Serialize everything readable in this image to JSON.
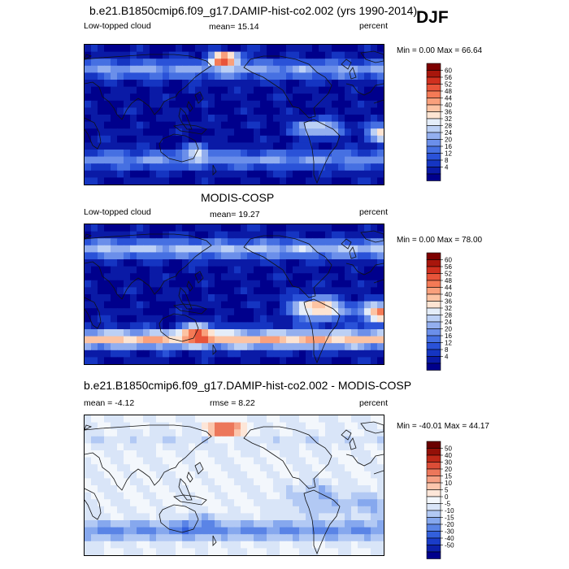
{
  "season": "DJF",
  "colors": {
    "seq_scale": [
      "#00008c",
      "#0a1aa6",
      "#1535c2",
      "#2a52d8",
      "#4670e2",
      "#6b8fea",
      "#93afef",
      "#bcd0f5",
      "#e4edf9",
      "#fde4d2",
      "#fcc3a3",
      "#f9a07c",
      "#f47a56",
      "#e8543a",
      "#d0301f",
      "#a8160c",
      "#7d0000"
    ],
    "diff_scale": [
      "#00008c",
      "#0c20aa",
      "#1a3cc8",
      "#3360dc",
      "#5a84e6",
      "#86a8ee",
      "#b2c9f4",
      "#d9e5f8",
      "#f3f7fc",
      "#fde6d8",
      "#fbc6ad",
      "#f5a084",
      "#ec775b",
      "#dc4d37",
      "#be2818",
      "#941008",
      "#6a0000"
    ]
  },
  "panels": [
    {
      "title": "b.e21.B1850cmip6.f09_g17.DAMIP-hist-co2.002 (yrs 1990-2014)",
      "left_label": "Low-topped cloud",
      "stat_label": "mean=  15.14",
      "units": "percent",
      "minmax": "Min =   0.00 Max =   66.64",
      "colorbar_ticks": [
        "60",
        "56",
        "52",
        "48",
        "44",
        "40",
        "36",
        "32",
        "28",
        "24",
        "20",
        "16",
        "12",
        "8",
        "4"
      ],
      "colorbar_scale": "seq"
    },
    {
      "title": "MODIS-COSP",
      "left_label": "Low-topped cloud",
      "stat_label": "mean=  19.27",
      "units": "percent",
      "minmax": "Min =   0.00 Max =   78.00",
      "colorbar_ticks": [
        "60",
        "56",
        "52",
        "48",
        "44",
        "40",
        "36",
        "32",
        "28",
        "24",
        "20",
        "16",
        "12",
        "8",
        "4"
      ],
      "colorbar_scale": "seq"
    },
    {
      "title": "b.e21.B1850cmip6.f09_g17.DAMIP-hist-co2.002 - MODIS-COSP",
      "left_label": "mean =  -4.12",
      "stat_label": "rmse =    8.22",
      "units": "percent",
      "minmax": "Min = -40.01 Max =   44.17",
      "colorbar_ticks": [
        "50",
        "40",
        "30",
        "20",
        "15",
        "10",
        "5",
        "0",
        "-5",
        "-10",
        "-15",
        "-20",
        "-30",
        "-40",
        "-50"
      ],
      "colorbar_scale": "diff"
    }
  ],
  "chart_data": [
    {
      "type": "heatmap",
      "title": "b.e21.B1850cmip6.f09_g17.DAMIP-hist-co2.002 (yrs 1990-2014)",
      "variable": "Low-topped cloud",
      "units": "percent",
      "season": "DJF",
      "mean": 15.14,
      "min": 0.0,
      "max": 66.64,
      "colorbar_levels": [
        4,
        8,
        12,
        16,
        20,
        24,
        28,
        32,
        36,
        40,
        44,
        48,
        52,
        56,
        60
      ],
      "map": "global lat-lon, Pacific-centered"
    },
    {
      "type": "heatmap",
      "title": "MODIS-COSP",
      "variable": "Low-topped cloud",
      "units": "percent",
      "season": "DJF",
      "mean": 19.27,
      "min": 0.0,
      "max": 78.0,
      "colorbar_levels": [
        4,
        8,
        12,
        16,
        20,
        24,
        28,
        32,
        36,
        40,
        44,
        48,
        52,
        56,
        60
      ],
      "map": "global lat-lon, Pacific-centered"
    },
    {
      "type": "heatmap",
      "title": "b.e21.B1850cmip6.f09_g17.DAMIP-hist-co2.002 - MODIS-COSP",
      "units": "percent",
      "season": "DJF",
      "mean": -4.12,
      "rmse": 8.22,
      "min": -40.01,
      "max": 44.17,
      "colorbar_levels": [
        -50,
        -40,
        -30,
        -20,
        -15,
        -10,
        -5,
        0,
        5,
        10,
        15,
        20,
        30,
        40,
        50
      ],
      "map": "global lat-lon, Pacific-centered"
    }
  ]
}
